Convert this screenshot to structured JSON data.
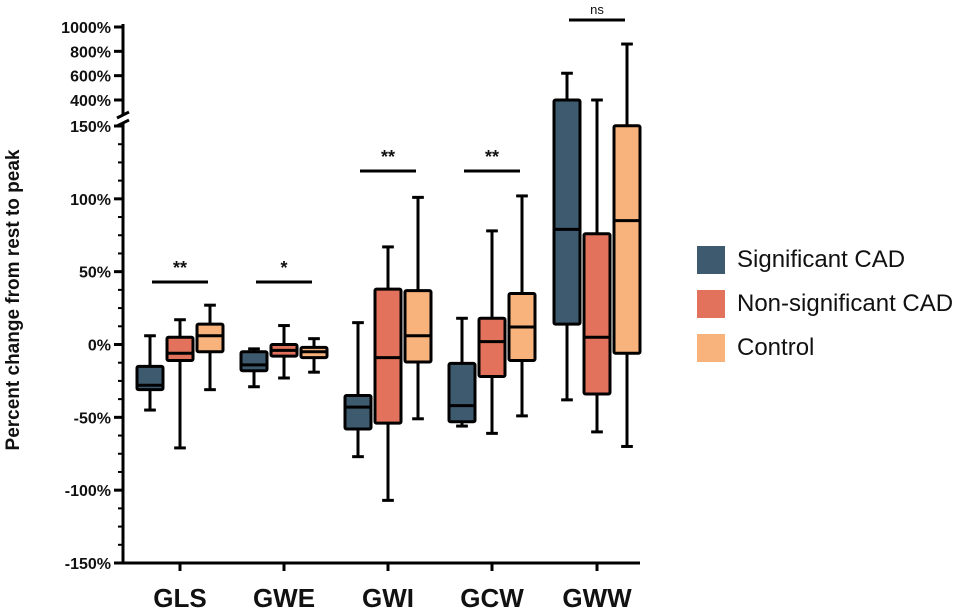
{
  "chart_data": {
    "type": "box",
    "ylabel": "Percent change from rest to peak",
    "categories": [
      "GLS",
      "GWE",
      "GWI",
      "GCW",
      "GWW"
    ],
    "y_axis_lower": {
      "range": [
        -150,
        150
      ],
      "tick_values": [
        -150,
        -100,
        -50,
        0,
        50,
        100,
        150
      ],
      "tick_labels": [
        "-150%",
        "-100%",
        "-50%",
        "0%",
        "50%",
        "100%",
        "150%"
      ]
    },
    "y_axis_upper": {
      "range": [
        400,
        1000
      ],
      "tick_values": [
        400,
        600,
        800,
        1000
      ],
      "tick_labels": [
        "400%",
        "600%",
        "800%",
        "1000%"
      ]
    },
    "series": [
      {
        "name": "Significant CAD",
        "color": "#3e5a6e",
        "boxes": [
          {
            "min": -45,
            "q1": -31,
            "median": -28,
            "q3": -15,
            "max": 6
          },
          {
            "min": -29,
            "q1": -18,
            "median": -14,
            "q3": -5,
            "max": -3
          },
          {
            "min": -77,
            "q1": -58,
            "median": -43,
            "q3": -35,
            "max": 15
          },
          {
            "min": -56,
            "q1": -53,
            "median": -42,
            "q3": -13,
            "max": 18
          },
          {
            "min": -38,
            "q1": 14,
            "median": 79,
            "q3": 400,
            "max": 620
          }
        ]
      },
      {
        "name": "Non-significant CAD",
        "color": "#e2725b",
        "boxes": [
          {
            "min": -71,
            "q1": -11,
            "median": -6,
            "q3": 5,
            "max": 17
          },
          {
            "min": -23,
            "q1": -8,
            "median": -4,
            "q3": 0,
            "max": 13
          },
          {
            "min": -107,
            "q1": -54,
            "median": -9,
            "q3": 38,
            "max": 67
          },
          {
            "min": -61,
            "q1": -22,
            "median": 2,
            "q3": 18,
            "max": 78
          },
          {
            "min": -60,
            "q1": -34,
            "median": 5,
            "q3": 76,
            "max": 400
          }
        ]
      },
      {
        "name": "Control",
        "color": "#f8b27c",
        "boxes": [
          {
            "min": -31,
            "q1": -5,
            "median": 6,
            "q3": 14,
            "max": 27
          },
          {
            "min": -19,
            "q1": -9,
            "median": -5,
            "q3": -2,
            "max": 4
          },
          {
            "min": -51,
            "q1": -12,
            "median": 6,
            "q3": 37,
            "max": 101
          },
          {
            "min": -49,
            "q1": -11,
            "median": 12,
            "q3": 35,
            "max": 102
          },
          {
            "min": -70,
            "q1": -6,
            "median": 85,
            "q3": 152,
            "max": 860
          }
        ]
      }
    ],
    "significance": [
      {
        "category": "GLS",
        "label": "**"
      },
      {
        "category": "GWE",
        "label": "*"
      },
      {
        "category": "GWI",
        "label": "**"
      },
      {
        "category": "GCW",
        "label": "**"
      },
      {
        "category": "GWW",
        "label": "ns"
      }
    ],
    "legend_position": "right"
  }
}
